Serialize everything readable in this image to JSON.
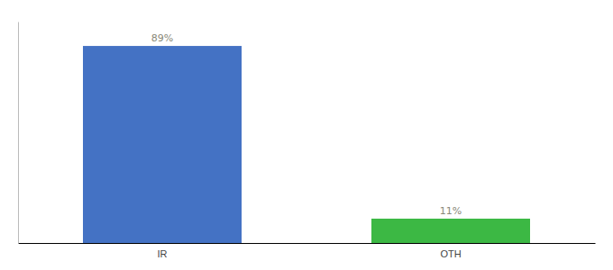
{
  "chart_data": {
    "type": "bar",
    "categories": [
      "IR",
      "OTH"
    ],
    "values": [
      89,
      11
    ],
    "value_labels": [
      "89%",
      "11%"
    ],
    "colors": [
      "#4472c4",
      "#3cb844"
    ],
    "ylim": [
      0,
      100
    ],
    "data_labels": true,
    "tick_labels": "x"
  }
}
